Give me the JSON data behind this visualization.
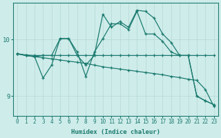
{
  "xlabel": "Humidex (Indice chaleur)",
  "ylabel": "",
  "background_color": "#ceecea",
  "line_color": "#1a7a6e",
  "grid_color": "#b8dcd8",
  "xlim": [
    -0.5,
    23.5
  ],
  "ylim": [
    8.65,
    10.65
  ],
  "yticks": [
    9,
    10
  ],
  "xticks": [
    0,
    1,
    2,
    3,
    4,
    5,
    6,
    7,
    8,
    9,
    10,
    11,
    12,
    13,
    14,
    15,
    16,
    17,
    18,
    19,
    20,
    21,
    22,
    23
  ],
  "series": [
    {
      "x": [
        0,
        1,
        2,
        3,
        4,
        5,
        6,
        7,
        8,
        9,
        10,
        11,
        12,
        13,
        14,
        15,
        16,
        17,
        18,
        19,
        20,
        21,
        22,
        23
      ],
      "y": [
        9.75,
        9.72,
        9.7,
        9.72,
        9.72,
        10.02,
        10.02,
        9.78,
        9.35,
        9.78,
        10.02,
        10.28,
        10.28,
        10.18,
        10.5,
        10.1,
        10.1,
        9.97,
        9.78,
        9.72,
        9.72,
        9.0,
        8.92,
        8.85
      ]
    },
    {
      "x": [
        0,
        1,
        2,
        3,
        4,
        5,
        6,
        7,
        8,
        9,
        10,
        11,
        12,
        13,
        14,
        15,
        16,
        17,
        18,
        19,
        20,
        21,
        22,
        23
      ],
      "y": [
        9.75,
        9.72,
        9.7,
        9.32,
        9.55,
        10.02,
        10.02,
        9.72,
        9.55,
        9.72,
        10.45,
        10.22,
        10.32,
        10.22,
        10.52,
        10.5,
        10.38,
        10.1,
        9.95,
        9.72,
        9.72,
        9.0,
        8.92,
        8.85
      ]
    },
    {
      "x": [
        0,
        1,
        2,
        3,
        4,
        5,
        6,
        7,
        8,
        9,
        10,
        11,
        12,
        13,
        14,
        15,
        16,
        17,
        18,
        19,
        20,
        21,
        22,
        23
      ],
      "y": [
        9.75,
        9.73,
        9.72,
        9.72,
        9.72,
        9.72,
        9.72,
        9.72,
        9.72,
        9.72,
        9.72,
        9.72,
        9.72,
        9.72,
        9.72,
        9.72,
        9.72,
        9.72,
        9.72,
        9.72,
        9.72,
        9.72,
        9.72,
        9.72
      ]
    },
    {
      "x": [
        0,
        1,
        2,
        3,
        4,
        5,
        6,
        7,
        8,
        9,
        10,
        11,
        12,
        13,
        14,
        15,
        16,
        17,
        18,
        19,
        20,
        21,
        22,
        23
      ],
      "y": [
        9.75,
        9.72,
        9.7,
        9.68,
        9.66,
        9.64,
        9.62,
        9.6,
        9.58,
        9.55,
        9.52,
        9.5,
        9.48,
        9.46,
        9.44,
        9.42,
        9.4,
        9.38,
        9.35,
        9.33,
        9.3,
        9.28,
        9.12,
        8.82
      ]
    }
  ]
}
